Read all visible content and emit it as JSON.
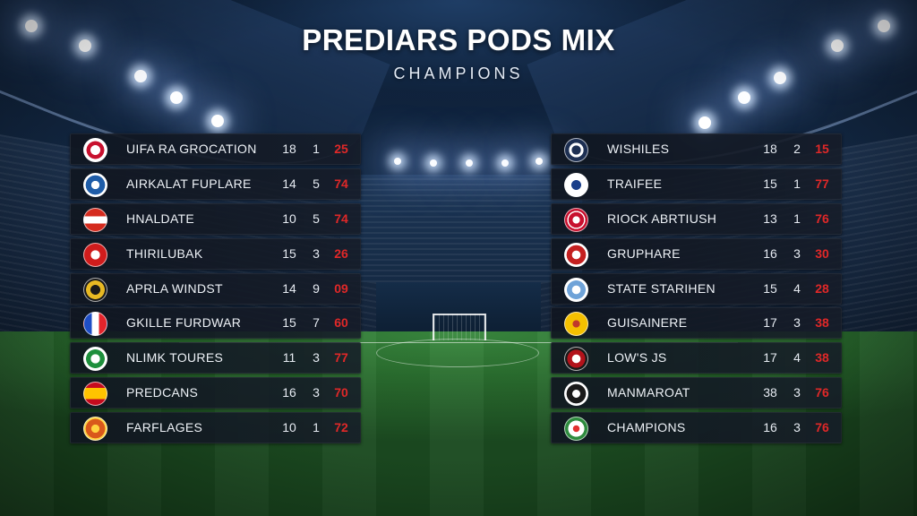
{
  "header": {
    "title": "PREDIARS PODS MIX",
    "subtitle": "CHAMPIONS"
  },
  "left_table": [
    {
      "team": "UIFA RA GROCATION",
      "a": "18",
      "b": "1",
      "pts": "25",
      "badge": "club-crest-icon"
    },
    {
      "team": "AIRKALAT FUPLARE",
      "a": "14",
      "b": "5",
      "pts": "74",
      "badge": "club-crest-icon"
    },
    {
      "team": "HNALDATE",
      "a": "10",
      "b": "5",
      "pts": "74",
      "badge": "flag-icon"
    },
    {
      "team": "THIRILUBAK",
      "a": "15",
      "b": "3",
      "pts": "26",
      "badge": "club-crest-icon"
    },
    {
      "team": "APRLA WINDST",
      "a": "14",
      "b": "9",
      "pts": "09",
      "badge": "club-crest-icon"
    },
    {
      "team": "GKILLE FURDWAR",
      "a": "15",
      "b": "7",
      "pts": "60",
      "badge": "flag-icon"
    },
    {
      "team": "NLIMK TOURES",
      "a": "11",
      "b": "3",
      "pts": "77",
      "badge": "club-crest-icon"
    },
    {
      "team": "PREDCANS",
      "a": "16",
      "b": "3",
      "pts": "70",
      "badge": "flag-icon"
    },
    {
      "team": "FARFLAGES",
      "a": "10",
      "b": "1",
      "pts": "72",
      "badge": "club-crest-icon"
    }
  ],
  "right_table": [
    {
      "team": "WISHILES",
      "a": "18",
      "b": "2",
      "pts": "15",
      "badge": "club-crest-icon"
    },
    {
      "team": "TRAIFEE",
      "a": "15",
      "b": "1",
      "pts": "77",
      "badge": "club-crest-icon"
    },
    {
      "team": "RIOCK ABRTIUSH",
      "a": "13",
      "b": "1",
      "pts": "76",
      "badge": "club-crest-icon"
    },
    {
      "team": "GRUPHARE",
      "a": "16",
      "b": "3",
      "pts": "30",
      "badge": "club-crest-icon"
    },
    {
      "team": "STATE STARIHEN",
      "a": "15",
      "b": "4",
      "pts": "28",
      "badge": "club-crest-icon"
    },
    {
      "team": "GUISAINERE",
      "a": "17",
      "b": "3",
      "pts": "38",
      "badge": "club-crest-icon"
    },
    {
      "team": "LOW'S JS",
      "a": "17",
      "b": "4",
      "pts": "38",
      "badge": "club-crest-icon"
    },
    {
      "team": "MANMAROAT",
      "a": "38",
      "b": "3",
      "pts": "76",
      "badge": "club-crest-icon"
    },
    {
      "team": "CHAMPIONS",
      "a": "16",
      "b": "3",
      "pts": "76",
      "badge": "club-crest-icon"
    }
  ],
  "colors": {
    "points": "#e02828",
    "row_bg": "#141c28",
    "text": "#eef2f7"
  }
}
